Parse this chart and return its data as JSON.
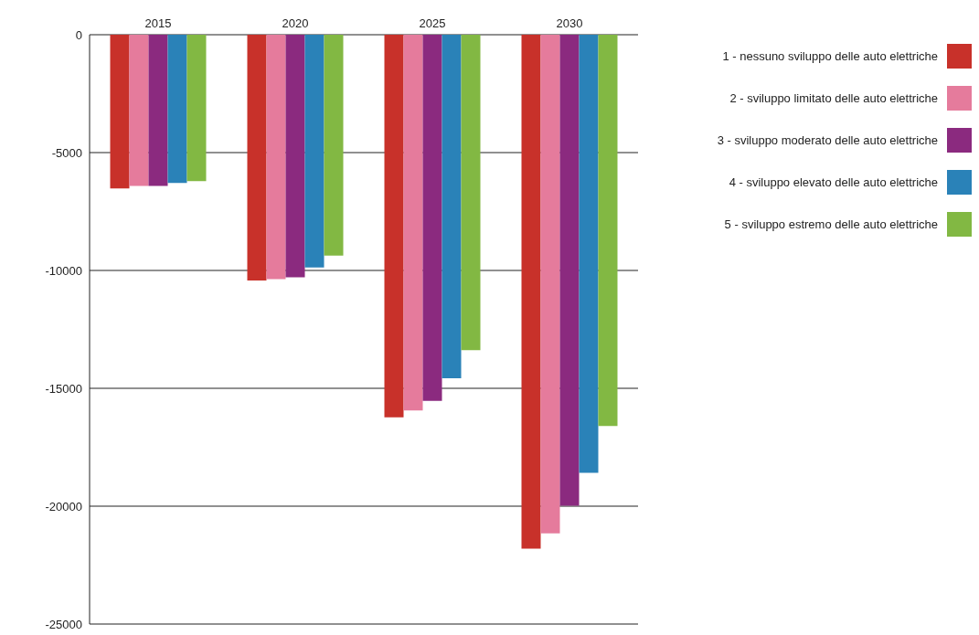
{
  "chart_data": {
    "type": "bar",
    "categories": [
      "2015",
      "2020",
      "2025",
      "2030"
    ],
    "series": [
      {
        "name": "1 - nessuno sviluppo delle auto elettriche",
        "color": "#c8312a",
        "values": [
          -6520,
          -10430,
          -16230,
          -21800
        ]
      },
      {
        "name": "2 - sviluppo limitato delle auto elettriche",
        "color": "#e57b9c",
        "values": [
          -6410,
          -10370,
          -15940,
          -21150
        ]
      },
      {
        "name": "3 - sviluppo moderato delle auto elettriche",
        "color": "#8b2a7f",
        "values": [
          -6410,
          -10290,
          -15530,
          -19980
        ]
      },
      {
        "name": "4 - sviluppo elevato delle auto elettriche",
        "color": "#2a82b8",
        "values": [
          -6290,
          -9870,
          -14570,
          -18590
        ]
      },
      {
        "name": "5 - sviluppo estremo delle auto elettriche",
        "color": "#82b843",
        "values": [
          -6210,
          -9370,
          -13380,
          -16600
        ]
      }
    ],
    "ylim": [
      -25000,
      0
    ],
    "yticks": [
      0,
      -5000,
      -10000,
      -15000,
      -20000,
      -25000
    ],
    "grid": "y",
    "legend": "right"
  }
}
